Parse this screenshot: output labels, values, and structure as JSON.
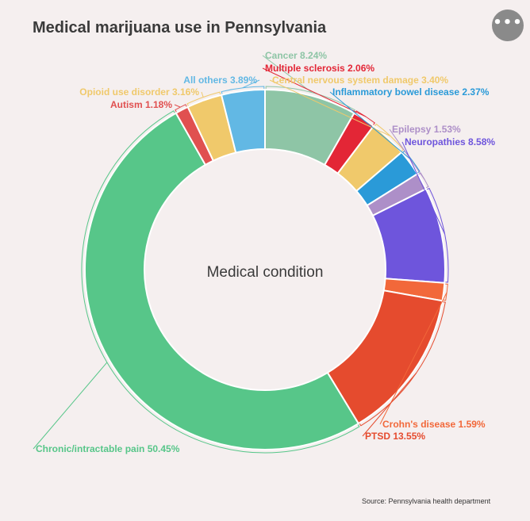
{
  "header": {
    "title": "Medical marijuana use in Pennsylvania",
    "menu_icon": "more-horizontal-icon",
    "menu_glyph": "•••"
  },
  "footer": {
    "source": "Source: Pennsylvania health department"
  },
  "chart_data": {
    "type": "pie",
    "variant": "donut",
    "center_label": "Medical condition",
    "data_labels_show": "category name and percent",
    "slices": [
      {
        "label": "Cancer",
        "value": 8.24,
        "color": "#8ec5a6"
      },
      {
        "label": "Multiple sclerosis",
        "value": 2.06,
        "color": "#e32636"
      },
      {
        "label": "Central nervous system damage",
        "value": 3.4,
        "color": "#f0c96b"
      },
      {
        "label": "Inflammatory bowel disease",
        "value": 2.37,
        "color": "#2a9ad8"
      },
      {
        "label": "Epilepsy",
        "value": 1.53,
        "color": "#ad8fc8"
      },
      {
        "label": "Neuropathies",
        "value": 8.58,
        "color": "#6e55dc"
      },
      {
        "label": "Crohn's disease",
        "value": 1.59,
        "color": "#f2683a"
      },
      {
        "label": "PTSD",
        "value": 13.55,
        "color": "#e54b2e"
      },
      {
        "label": "Chronic/intractable pain",
        "value": 50.45,
        "color": "#57c689"
      },
      {
        "label": "Autism",
        "value": 1.18,
        "color": "#e05050"
      },
      {
        "label": "Opioid use disorder",
        "value": 3.16,
        "color": "#f0c96b"
      },
      {
        "label": "All others",
        "value": 3.89,
        "color": "#62b8e4"
      }
    ]
  }
}
